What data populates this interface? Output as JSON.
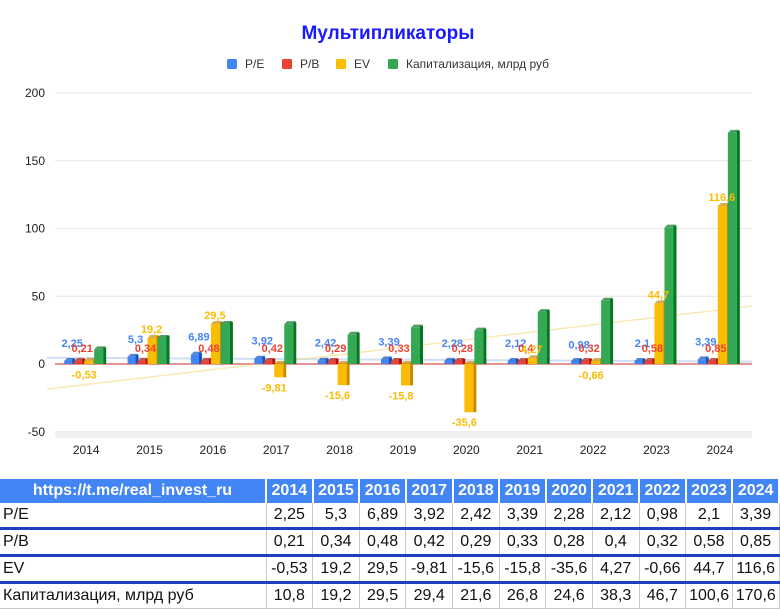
{
  "chart_data": {
    "type": "bar",
    "title": "Мультипликаторы",
    "categories": [
      "2014",
      "2015",
      "2016",
      "2017",
      "2018",
      "2019",
      "2020",
      "2021",
      "2022",
      "2023",
      "2024"
    ],
    "ylim": [
      -50,
      200
    ],
    "yticks": [
      200,
      150,
      100,
      50,
      0,
      -50
    ],
    "grid": true,
    "legend_position": "top",
    "series": [
      {
        "name": "P/E",
        "color": "#4285f4",
        "values": [
          2.25,
          5.3,
          6.89,
          3.92,
          2.42,
          3.39,
          2.28,
          2.12,
          0.98,
          2.1,
          3.39
        ],
        "labels": [
          "2,25",
          "5,3",
          "6,89",
          "3,92",
          "2,42",
          "3,39",
          "2,28",
          "2,12",
          "0,98",
          "2,1",
          "3,39"
        ]
      },
      {
        "name": "P/B",
        "color": "#ea4335",
        "values": [
          0.21,
          0.34,
          0.48,
          0.42,
          0.29,
          0.33,
          0.28,
          0.4,
          0.32,
          0.58,
          0.85
        ],
        "labels": [
          "0,21",
          "0,34",
          "0,48",
          "0,42",
          "0,29",
          "0,33",
          "0,28",
          "0,4",
          "0,32",
          "0,58",
          "0,85"
        ]
      },
      {
        "name": "EV",
        "color": "#fbbc04",
        "values": [
          -0.53,
          19.2,
          29.5,
          -9.81,
          -15.6,
          -15.8,
          -35.6,
          4.27,
          -0.66,
          44.7,
          116.6
        ],
        "labels": [
          "-0,53",
          "19,2",
          "29,5",
          "-9,81",
          "-15,6",
          "-15,8",
          "-35,6",
          "4,27",
          "-0,66",
          "44,7",
          "116,6"
        ]
      },
      {
        "name": "Капитализация, млрд руб",
        "color": "#34a853",
        "values": [
          10.8,
          19.2,
          29.5,
          29.4,
          21.6,
          26.8,
          24.6,
          38.3,
          46.7,
          100.6,
          170.6
        ]
      }
    ]
  },
  "table": {
    "header_label": "https://t.me/real_invest_ru",
    "years": [
      "2014",
      "2015",
      "2016",
      "2017",
      "2018",
      "2019",
      "2020",
      "2021",
      "2022",
      "2023",
      "2024"
    ],
    "rows": [
      {
        "label": "P/E",
        "values": [
          "2,25",
          "5,3",
          "6,89",
          "3,92",
          "2,42",
          "3,39",
          "2,28",
          "2,12",
          "0,98",
          "2,1",
          "3,39"
        ]
      },
      {
        "label": "P/B",
        "values": [
          "0,21",
          "0,34",
          "0,48",
          "0,42",
          "0,29",
          "0,33",
          "0,28",
          "0,4",
          "0,32",
          "0,58",
          "0,85"
        ]
      },
      {
        "label": "EV",
        "values": [
          "-0,53",
          "19,2",
          "29,5",
          "-9,81",
          "-15,6",
          "-15,8",
          "-35,6",
          "4,27",
          "-0,66",
          "44,7",
          "116,6"
        ]
      },
      {
        "label": "Капитализация, млрд руб",
        "values": [
          "10,8",
          "19,2",
          "29,5",
          "29,4",
          "21,6",
          "26,8",
          "24,6",
          "38,3",
          "46,7",
          "100,6",
          "170,6"
        ]
      }
    ]
  }
}
